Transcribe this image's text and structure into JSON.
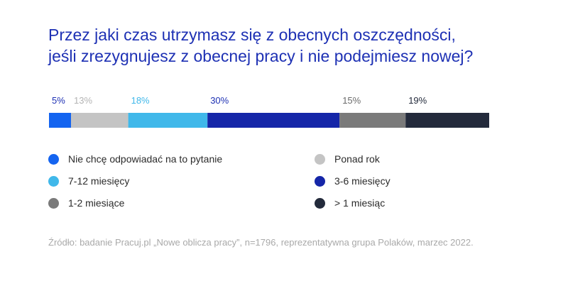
{
  "chart_data": {
    "type": "bar",
    "orientation": "horizontal-stacked-100",
    "title_lines": [
      "Przez jaki czas utrzymasz się z obecnych oszczędności,",
      "jeśli zrezygnujesz z obecnej pracy i nie podejmiesz nowej?"
    ],
    "unit": "%",
    "xlim": [
      0,
      100
    ],
    "segments": [
      {
        "name": "Nie chcę odpowiadać na to pytanie",
        "value": 5,
        "label": "5%",
        "color": "#1464f0",
        "label_color": "#1e31b4"
      },
      {
        "name": "Ponad rok",
        "value": 13,
        "label": "13%",
        "color": "#c4c4c4",
        "label_color": "#b4b4b4"
      },
      {
        "name": "7-12 miesięcy",
        "value": 18,
        "label": "18%",
        "color": "#40b8ea",
        "label_color": "#40b8ea"
      },
      {
        "name": "3-6 miesięcy",
        "value": 30,
        "label": "30%",
        "color": "#1526a8",
        "label_color": "#1e31b4"
      },
      {
        "name": "1-2 miesiące",
        "value": 15,
        "label": "15%",
        "color": "#7a7a7a",
        "label_color": "#6b6b6b"
      },
      {
        "name": "> 1 miesiąc",
        "value": 19,
        "label": "19%",
        "color": "#232a3b",
        "label_color": "#232a3b"
      }
    ],
    "legend": {
      "left_column": [
        {
          "label": "Nie chcę odpowiadać na to pytanie",
          "color": "#1464f0"
        },
        {
          "label": "7-12 miesięcy",
          "color": "#40b8ea"
        },
        {
          "label": "1-2 miesiące",
          "color": "#7a7a7a"
        }
      ],
      "right_column": [
        {
          "label": "Ponad rok",
          "color": "#c4c4c4"
        },
        {
          "label": "3-6 miesięcy",
          "color": "#1526a8"
        },
        {
          "label": "> 1 miesiąc",
          "color": "#232a3b"
        }
      ]
    },
    "source": "Źródło: badanie Pracuj.pl „Nowe oblicza pracy”, n=1796, reprezentatywna grupa Polaków, marzec 2022."
  }
}
